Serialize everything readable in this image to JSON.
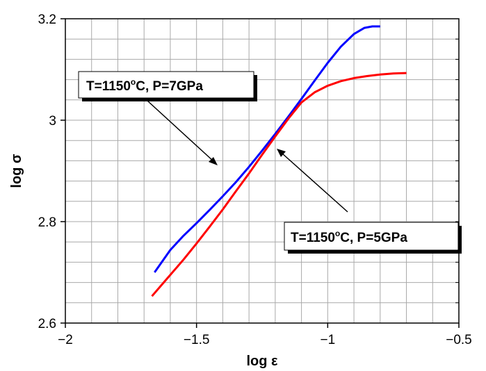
{
  "chart_data": {
    "type": "line",
    "xlabel": "log ε",
    "ylabel": "log σ",
    "xlim": [
      -2,
      -0.5
    ],
    "ylim": [
      2.6,
      3.2
    ],
    "x_ticks": [
      -2,
      -1.5,
      -1,
      -0.5
    ],
    "x_tick_labels": [
      "−2",
      "−1.5",
      "−1",
      "−0.5"
    ],
    "y_ticks": [
      2.6,
      2.8,
      3.0,
      3.2
    ],
    "y_tick_labels": [
      "2.6",
      "2.8",
      "3",
      "3.2"
    ],
    "x_minor_step": 0.1,
    "y_minor_step": 0.04,
    "grid": true,
    "series": [
      {
        "color": "#0000ff",
        "points": [
          [
            -1.66,
            2.7
          ],
          [
            -1.6,
            2.744
          ],
          [
            -1.55,
            2.772
          ],
          [
            -1.5,
            2.797
          ],
          [
            -1.45,
            2.823
          ],
          [
            -1.4,
            2.85
          ],
          [
            -1.35,
            2.878
          ],
          [
            -1.3,
            2.908
          ],
          [
            -1.25,
            2.94
          ],
          [
            -1.2,
            2.973
          ],
          [
            -1.15,
            3.007
          ],
          [
            -1.1,
            3.042
          ],
          [
            -1.05,
            3.078
          ],
          [
            -1.0,
            3.113
          ],
          [
            -0.95,
            3.145
          ],
          [
            -0.9,
            3.17
          ],
          [
            -0.86,
            3.182
          ],
          [
            -0.83,
            3.185
          ],
          [
            -0.8,
            3.185
          ]
        ]
      },
      {
        "color": "#ff0000",
        "points": [
          [
            -1.67,
            2.653
          ],
          [
            -1.62,
            2.683
          ],
          [
            -1.55,
            2.725
          ],
          [
            -1.5,
            2.757
          ],
          [
            -1.45,
            2.79
          ],
          [
            -1.4,
            2.824
          ],
          [
            -1.35,
            2.86
          ],
          [
            -1.3,
            2.895
          ],
          [
            -1.25,
            2.932
          ],
          [
            -1.2,
            2.968
          ],
          [
            -1.15,
            3.003
          ],
          [
            -1.1,
            3.035
          ],
          [
            -1.05,
            3.055
          ],
          [
            -1.0,
            3.068
          ],
          [
            -0.95,
            3.077
          ],
          [
            -0.9,
            3.083
          ],
          [
            -0.85,
            3.087
          ],
          [
            -0.8,
            3.09
          ],
          [
            -0.75,
            3.092
          ],
          [
            -0.7,
            3.093
          ]
        ]
      }
    ],
    "annotations": [
      {
        "text_main": "T=1150",
        "text_sup": "o",
        "text_rest": "C, P=7GPa",
        "arrow_to": [
          -1.47,
          2.9
        ]
      },
      {
        "text_main": "T=1150",
        "text_sup": "o",
        "text_rest": "C, P=5GPa",
        "arrow_to": [
          -1.2,
          2.945
        ]
      }
    ]
  }
}
